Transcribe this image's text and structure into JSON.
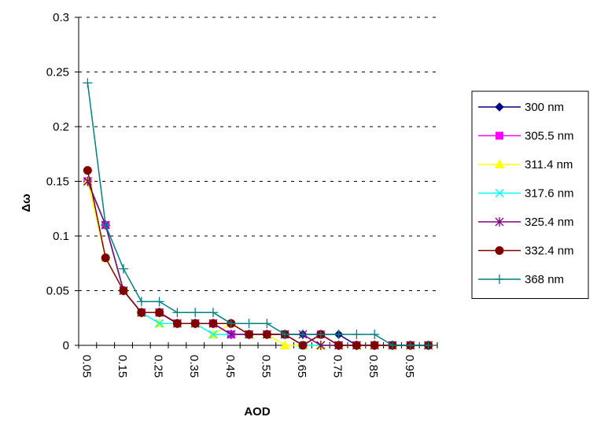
{
  "chart_data": {
    "type": "line",
    "title": "",
    "xlabel": "AOD",
    "ylabel": "Δω",
    "ylim": [
      0,
      0.3
    ],
    "yticks": [
      "0",
      "0.05",
      "0.1",
      "0.15",
      "0.2",
      "0.25",
      "0.3"
    ],
    "x": [
      0.05,
      0.1,
      0.15,
      0.2,
      0.25,
      0.3,
      0.35,
      0.4,
      0.45,
      0.5,
      0.55,
      0.6,
      0.65,
      0.7,
      0.75,
      0.8,
      0.85,
      0.9,
      0.95,
      1.0
    ],
    "xtick_labels": [
      "0.05",
      "0.15",
      "0.25",
      "0.35",
      "0.45",
      "0.55",
      "0.65",
      "0.75",
      "0.85",
      "0.95"
    ],
    "grid": "horizontal-dashed",
    "legend_position": "right",
    "series": [
      {
        "name": "300 nm",
        "color": "#000080",
        "marker": "diamond",
        "values": [
          0.15,
          0.11,
          0.05,
          0.03,
          0.03,
          0.02,
          0.02,
          0.02,
          0.01,
          0.01,
          0.01,
          0.01,
          0.01,
          0.01,
          0.01,
          0.0,
          0.0,
          0.0,
          0.0,
          0.0
        ]
      },
      {
        "name": "305.5 nm",
        "color": "#ff00ff",
        "marker": "square",
        "values": [
          0.15,
          0.11,
          0.05,
          0.03,
          0.03,
          0.02,
          0.02,
          0.02,
          0.01,
          0.01,
          0.01,
          0.01,
          0.0,
          0.01,
          0.0,
          0.0,
          0.0,
          0.0,
          0.0,
          0.0
        ]
      },
      {
        "name": "311.4 nm",
        "color": "#ffff00",
        "marker": "triangle",
        "values": [
          0.15,
          0.08,
          0.05,
          0.03,
          0.02,
          0.02,
          0.02,
          0.01,
          0.02,
          0.01,
          0.01,
          0.0,
          0.0,
          0.0,
          0.0,
          0.0,
          0.0,
          0.0,
          0.0,
          0.0
        ]
      },
      {
        "name": "317.6 nm",
        "color": "#00ffff",
        "marker": "x",
        "values": [
          0.15,
          0.11,
          0.05,
          0.03,
          0.02,
          0.02,
          0.02,
          0.01,
          0.01,
          0.01,
          0.01,
          0.01,
          0.0,
          0.0,
          0.0,
          0.0,
          0.0,
          0.0,
          0.0,
          0.0
        ]
      },
      {
        "name": "325.4 nm",
        "color": "#800080",
        "marker": "star",
        "values": [
          0.15,
          0.11,
          0.05,
          0.03,
          0.03,
          0.02,
          0.02,
          0.02,
          0.01,
          0.01,
          0.01,
          0.01,
          0.01,
          0.0,
          0.0,
          0.0,
          0.0,
          0.0,
          0.0,
          0.0
        ]
      },
      {
        "name": "332.4 nm",
        "color": "#800000",
        "marker": "circle",
        "values": [
          0.16,
          0.08,
          0.05,
          0.03,
          0.03,
          0.02,
          0.02,
          0.02,
          0.02,
          0.01,
          0.01,
          0.01,
          0.0,
          0.01,
          0.0,
          0.0,
          0.0,
          0.0,
          0.0,
          0.0
        ]
      },
      {
        "name": "368 nm",
        "color": "#008080",
        "marker": "plus",
        "values": [
          0.24,
          0.11,
          0.07,
          0.04,
          0.04,
          0.03,
          0.03,
          0.03,
          0.02,
          0.02,
          0.02,
          0.01,
          0.01,
          0.01,
          0.01,
          0.01,
          0.01,
          0.0,
          0.0,
          0.0
        ]
      }
    ]
  }
}
